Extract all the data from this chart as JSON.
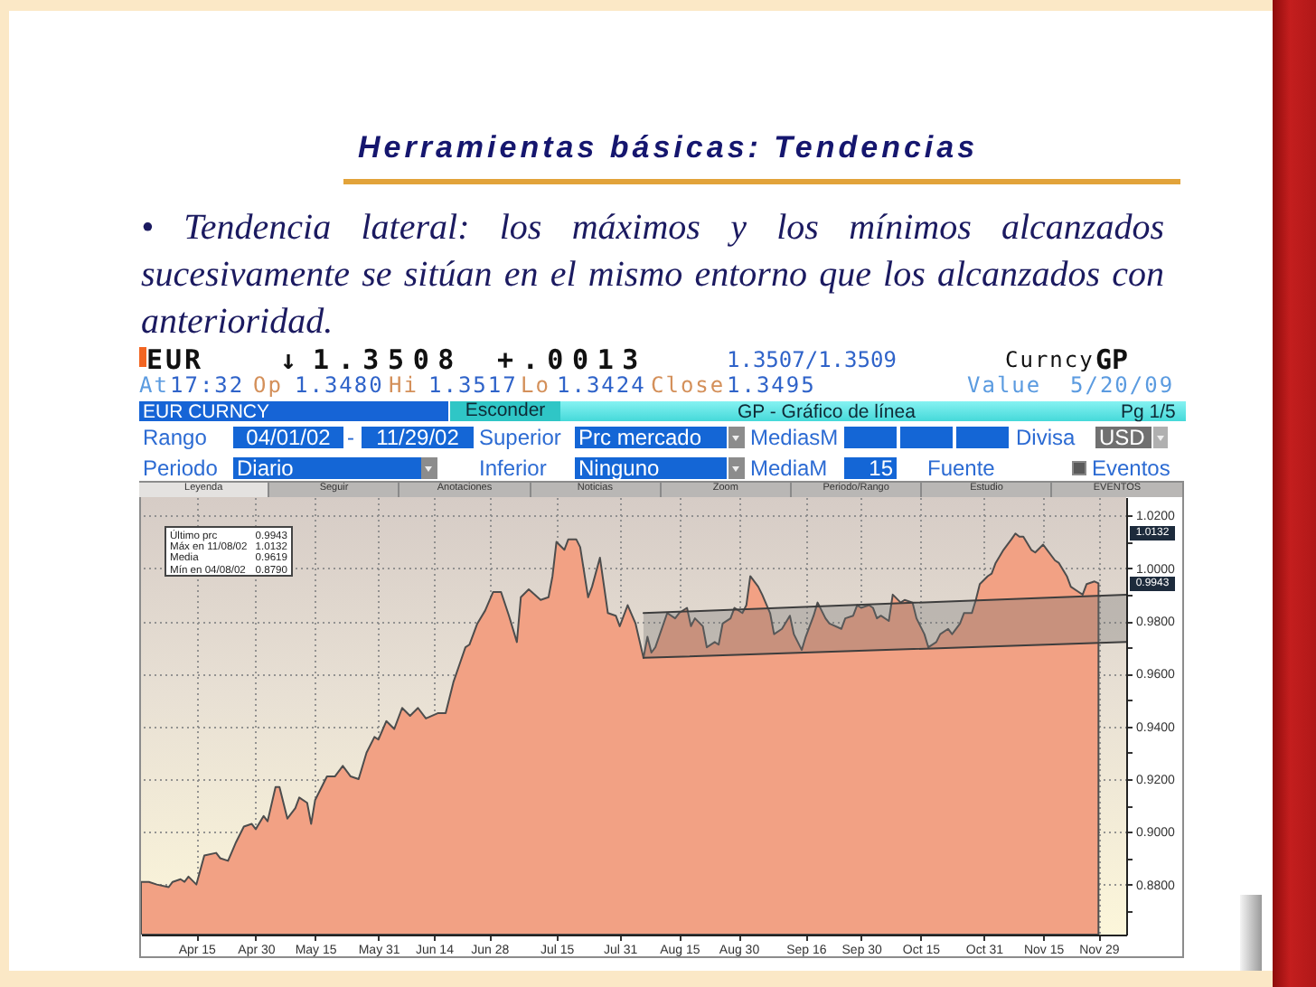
{
  "chart_data": {
    "type": "area",
    "title": "Herramientas básicas: Tendencias",
    "subtitle": "• Tendencia lateral: los máximos y los mínimos alcanzados sucesivamente se sitúan en el mismo entorno que los alcanzados con anterioridad.",
    "xlim": [
      "--04-01",
      "--12-06"
    ],
    "xticks": [
      {
        "value": "--04-15",
        "label": "Apr 15"
      },
      {
        "value": "--04-30",
        "label": "Apr 30"
      },
      {
        "value": "--05-15",
        "label": "May 15"
      },
      {
        "value": "--05-31",
        "label": "May 31"
      },
      {
        "value": "--06-14",
        "label": "Jun 14"
      },
      {
        "value": "--06-28",
        "label": "Jun 28"
      },
      {
        "value": "--07-15",
        "label": "Jul 15"
      },
      {
        "value": "--07-31",
        "label": "Jul 31"
      },
      {
        "value": "--08-15",
        "label": "Aug 15"
      },
      {
        "value": "--08-30",
        "label": "Aug 30"
      },
      {
        "value": "--09-16",
        "label": "Sep 16"
      },
      {
        "value": "--09-30",
        "label": "Sep 30"
      },
      {
        "value": "--10-15",
        "label": "Oct 15"
      },
      {
        "value": "--10-31",
        "label": "Oct 31"
      },
      {
        "value": "--11-15",
        "label": "Nov 15"
      },
      {
        "value": "--11-29",
        "label": "Nov 29"
      }
    ],
    "ylim": [
      0.861,
      1.027
    ],
    "yticks": [
      {
        "value": 0.87,
        "label": null
      },
      {
        "value": 0.88,
        "label": "0.8800"
      },
      {
        "value": 0.89,
        "label": null
      },
      {
        "value": 0.9,
        "label": "0.9000"
      },
      {
        "value": 0.91,
        "label": null
      },
      {
        "value": 0.92,
        "label": "0.9200"
      },
      {
        "value": 0.93,
        "label": null
      },
      {
        "value": 0.94,
        "label": "0.9400"
      },
      {
        "value": 0.95,
        "label": null
      },
      {
        "value": 0.96,
        "label": "0.9600"
      },
      {
        "value": 0.97,
        "label": null
      },
      {
        "value": 0.98,
        "label": "0.9800"
      },
      {
        "value": 0.99,
        "label": null
      },
      {
        "value": 1.0,
        "label": "1.0000"
      },
      {
        "value": 1.01,
        "label": null
      },
      {
        "value": 1.02,
        "label": "1.0200"
      }
    ],
    "grid": true,
    "series": [
      {
        "color": "#f2a184",
        "x": [
          "--04-01",
          "--04-03",
          "--04-05",
          "--04-08",
          "--04-09",
          "--04-11",
          "--04-12",
          "--04-13",
          "--04-15",
          "--04-17",
          "--04-20",
          "--04-21",
          "--04-23",
          "--04-25",
          "--04-27",
          "--04-29",
          "--04-30",
          "--05-02",
          "--05-03",
          "--05-05",
          "--05-06",
          "--05-08",
          "--05-10",
          "--05-11",
          "--05-13",
          "--05-14",
          "--05-15",
          "--05-18",
          "--05-20",
          "--05-22",
          "--05-24",
          "--05-26",
          "--05-28",
          "--05-30",
          "--05-31",
          "--06-02",
          "--06-04",
          "--06-06",
          "--06-08",
          "--06-10",
          "--06-12",
          "--06-15",
          "--06-17",
          "--06-19",
          "--06-22",
          "--06-23",
          "--06-25",
          "--06-27",
          "--06-29",
          "--07-01",
          "--07-03",
          "--07-05",
          "--07-06",
          "--07-08",
          "--07-11",
          "--07-13",
          "--07-14",
          "--07-15",
          "--07-17",
          "--07-18",
          "--07-20",
          "--07-21",
          "--07-23",
          "--07-24",
          "--07-26",
          "--07-28",
          "--07-30",
          "--07-31",
          "--08-02",
          "--08-04",
          "--08-06",
          "--08-07",
          "--08-08",
          "--08-09",
          "--08-12",
          "--08-14",
          "--08-15",
          "--08-17",
          "--08-18",
          "--08-19",
          "--08-21",
          "--08-22",
          "--08-24",
          "--08-25",
          "--08-26",
          "--08-28",
          "--08-29",
          "--08-31",
          "--09-01",
          "--09-02",
          "--09-04",
          "--09-05",
          "--09-07",
          "--09-08",
          "--09-10",
          "--09-12",
          "--09-13",
          "--09-15",
          "--09-16",
          "--09-18",
          "--09-19",
          "--09-21",
          "--09-22",
          "--09-25",
          "--09-26",
          "--09-28",
          "--09-29",
          "--09-30",
          "--10-02",
          "--10-03",
          "--10-04",
          "--10-05",
          "--10-07",
          "--10-08",
          "--10-10",
          "--10-11",
          "--10-13",
          "--10-14",
          "--10-16",
          "--10-17",
          "--10-19",
          "--10-20",
          "--10-22",
          "--10-23",
          "--10-25",
          "--10-26",
          "--10-28",
          "--10-29",
          "--10-30",
          "--11-01",
          "--11-02",
          "--11-03",
          "--11-05",
          "--11-07",
          "--11-08",
          "--11-09",
          "--11-10",
          "--11-12",
          "--11-13",
          "--11-15",
          "--11-16",
          "--11-18",
          "--11-19",
          "--11-21",
          "--11-22",
          "--11-24",
          "--11-25",
          "--11-26",
          "--11-28",
          "--11-29"
        ],
        "values": [
          0.881,
          0.881,
          0.88,
          0.879,
          0.881,
          0.882,
          0.881,
          0.883,
          0.88,
          0.891,
          0.892,
          0.89,
          0.889,
          0.896,
          0.902,
          0.903,
          0.901,
          0.906,
          0.904,
          0.917,
          0.917,
          0.905,
          0.909,
          0.913,
          0.911,
          0.903,
          0.912,
          0.921,
          0.921,
          0.925,
          0.921,
          0.92,
          0.93,
          0.936,
          0.935,
          0.942,
          0.939,
          0.947,
          0.944,
          0.947,
          0.943,
          0.945,
          0.945,
          0.957,
          0.97,
          0.971,
          0.979,
          0.984,
          0.991,
          0.991,
          0.982,
          0.972,
          0.989,
          0.992,
          0.988,
          0.989,
          0.997,
          1.01,
          1.007,
          1.011,
          1.011,
          1.008,
          0.989,
          0.993,
          1.004,
          0.983,
          0.982,
          0.978,
          0.986,
          0.979,
          0.966,
          0.974,
          0.968,
          0.97,
          0.983,
          0.981,
          0.983,
          0.985,
          0.978,
          0.981,
          0.978,
          0.97,
          0.972,
          0.971,
          0.979,
          0.981,
          0.985,
          0.983,
          0.986,
          0.997,
          0.993,
          0.99,
          0.983,
          0.975,
          0.977,
          0.982,
          0.975,
          0.969,
          0.974,
          0.982,
          0.987,
          0.981,
          0.979,
          0.977,
          0.981,
          0.982,
          0.986,
          0.985,
          0.986,
          0.985,
          0.981,
          0.982,
          0.98,
          0.99,
          0.987,
          0.988,
          0.987,
          0.981,
          0.975,
          0.97,
          0.972,
          0.975,
          0.977,
          0.975,
          0.979,
          0.983,
          0.983,
          0.988,
          0.994,
          0.997,
          0.998,
          1.002,
          1.007,
          1.011,
          1.0132,
          1.012,
          1.012,
          1.007,
          1.006,
          1.009,
          1.007,
          1.003,
          1.002,
          0.997,
          0.993,
          0.991,
          0.99,
          0.994,
          0.995,
          0.9943
        ]
      },
      {
        "type": "line",
        "color": "#3d3d3d",
        "x": [
          "--08-06",
          "--12-06"
        ],
        "values": [
          0.983,
          0.99
        ],
        "lower": [
          0.966,
          0.972
        ],
        "upper": [
          0.983,
          0.99
        ]
      },
      {
        "type": "line",
        "color": "#3d3d3d",
        "x": [
          "--08-06",
          "--12-06"
        ],
        "values": [
          0.966,
          0.972
        ]
      }
    ],
    "annotations": [
      "EUR",
      "↓",
      "1.3508",
      "+.0013",
      "1.3507/1.3509",
      "Curncy",
      "GP",
      "At",
      "17:32",
      "Op",
      "1.3480",
      "Hi",
      "1.3517",
      "Lo",
      "1.3424",
      "Close",
      "1.3495",
      "Value",
      "5/20/09",
      "EUR CURNCY",
      "Esconder",
      "GP - Gráfico de línea",
      "Pg 1/5",
      "Rango",
      "04/01/02",
      "-",
      "11/29/02",
      "Superior",
      "Prc mercado",
      "MediasM",
      "Divisa",
      "USD",
      "Periodo",
      "Diario",
      "Inferior",
      "Ninguno",
      "MediaM",
      "15",
      "Fuente",
      "Eventos",
      "Leyenda",
      "Seguir",
      "Anotaciones",
      "Noticias",
      "Zoom",
      "Periodo/Rango",
      "Estudio",
      "EVENTOS",
      "Último prc",
      "0.9943",
      "Máx en 11/08/02",
      "1.0132",
      "Media",
      "0.9619",
      "Mín en 04/08/02",
      "0.8790",
      {
        "text": "1.0132",
        "y": 1.0132
      },
      {
        "text": "0.9943",
        "y": 0.9943
      }
    ]
  }
}
